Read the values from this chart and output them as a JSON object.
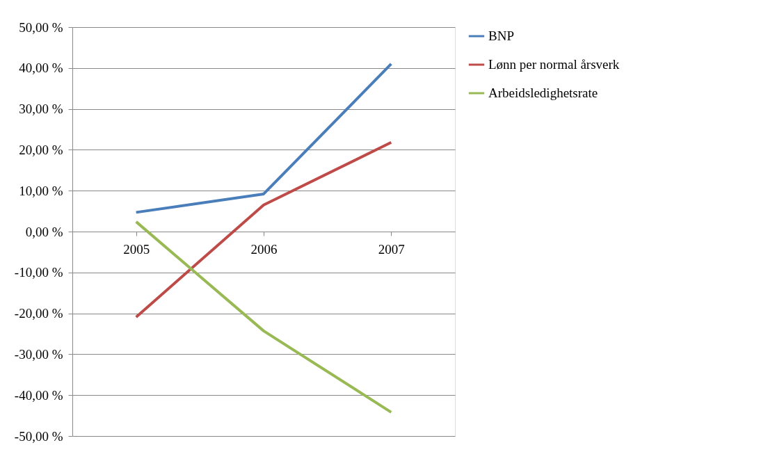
{
  "chart_data": {
    "type": "line",
    "categories": [
      "2005",
      "2006",
      "2007"
    ],
    "series": [
      {
        "name": "BNP",
        "color": "#4a7ebb",
        "values": [
          4.7,
          9.2,
          41.0
        ]
      },
      {
        "name": "Lønn per normal årsverk",
        "color": "#be4b48",
        "values": [
          -20.9,
          6.5,
          21.8
        ]
      },
      {
        "name": "Arbeidsledighetsrate",
        "color": "#98b954",
        "values": [
          2.4,
          -24.3,
          -44.2
        ]
      }
    ],
    "ylim": [
      -50,
      50
    ],
    "yticks": [
      {
        "value": -50,
        "label": "-50,00 %"
      },
      {
        "value": -40,
        "label": "-40,00 %"
      },
      {
        "value": -30,
        "label": "-30,00 %"
      },
      {
        "value": -20,
        "label": "-20,00 %"
      },
      {
        "value": -10,
        "label": "-10,00 %"
      },
      {
        "value": 0,
        "label": "0,00 %"
      },
      {
        "value": 10,
        "label": "10,00 %"
      },
      {
        "value": 20,
        "label": "20,00 %"
      },
      {
        "value": 30,
        "label": "30,00 %"
      },
      {
        "value": 40,
        "label": "40,00 %"
      },
      {
        "value": 50,
        "label": "50,00 %"
      }
    ],
    "grid": "y",
    "legend": "right",
    "marker": "none",
    "line_style": "solid"
  }
}
